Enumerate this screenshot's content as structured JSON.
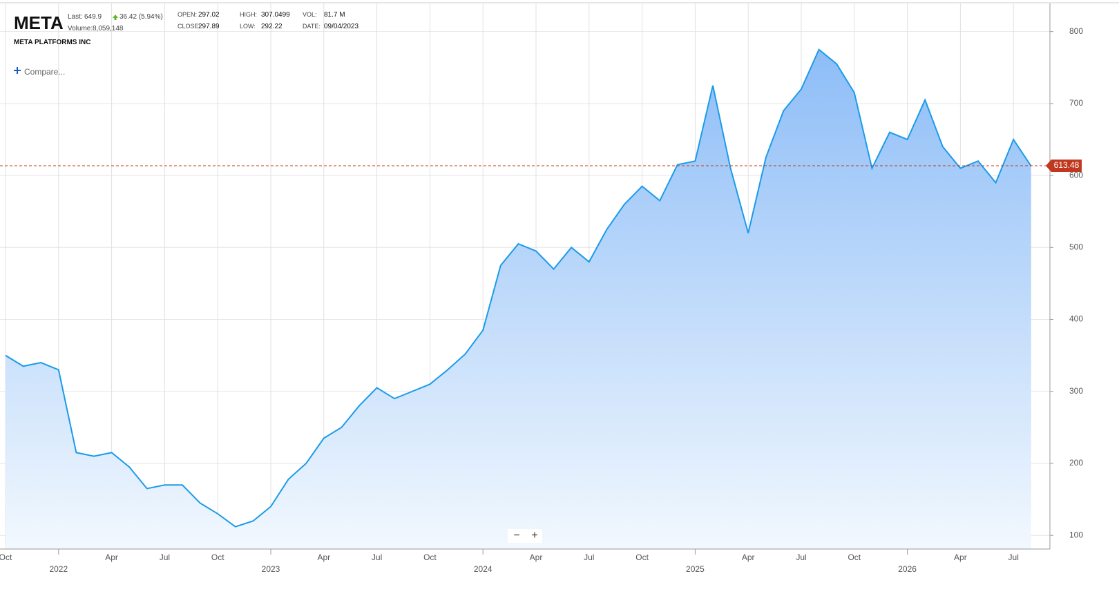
{
  "header": {
    "symbol": "META",
    "last_label": "Last:",
    "last": "649.9",
    "change": "36.42 (5.94%)",
    "volume_label": "Volume:",
    "volume": "8,059,148",
    "company": "META PLATFORMS INC",
    "open_label": "OPEN:",
    "open": "297.02",
    "close_label": "CLOSE:",
    "close": "297.89",
    "high_label": "HIGH:",
    "high": "307.0499",
    "low_label": "LOW:",
    "low": "292.22",
    "vol_label": "VOL:",
    "vol": "81.7 M",
    "date_label": "DATE:",
    "date": "09/04/2023"
  },
  "controls": {
    "compare": "Compare...",
    "zoom_out": "−",
    "zoom_in": "+"
  },
  "chart_data": {
    "type": "area",
    "categories": [
      "Oct",
      null,
      null,
      "2022",
      null,
      null,
      "Apr",
      null,
      null,
      "Jul",
      null,
      null,
      "Oct",
      null,
      null,
      "2023",
      null,
      null,
      "Apr",
      null,
      null,
      "Jul",
      null,
      null,
      "Oct",
      null,
      null,
      "2024",
      null,
      null,
      "Apr",
      null,
      null,
      "Jul",
      null,
      null,
      "Oct",
      null,
      null,
      "2025",
      null,
      null,
      "Apr",
      null,
      null,
      "Jul",
      null,
      null,
      "Oct",
      null,
      null,
      "2026",
      null,
      null,
      "Apr",
      null,
      null,
      "Jul",
      null
    ],
    "series": [
      {
        "color": "#1a9bea",
        "values": [
          350,
          335,
          340,
          330,
          215,
          210,
          215,
          195,
          165,
          170,
          170,
          145,
          130,
          112,
          120,
          140,
          178,
          200,
          235,
          250,
          280,
          305,
          290,
          300,
          310,
          330,
          352,
          385,
          475,
          505,
          495,
          470,
          500,
          480,
          525,
          560,
          585,
          565,
          615,
          620,
          725,
          610,
          520,
          625,
          690,
          720,
          775,
          755,
          715,
          610,
          660,
          650,
          705,
          640,
          610,
          620,
          590,
          650,
          613
        ]
      }
    ],
    "last_close": 613.48,
    "ref_color": "#c0391f",
    "ylim": [
      81,
      839
    ],
    "yticks": [
      100,
      200,
      300,
      400,
      500,
      600,
      700,
      800
    ],
    "grid": true
  }
}
